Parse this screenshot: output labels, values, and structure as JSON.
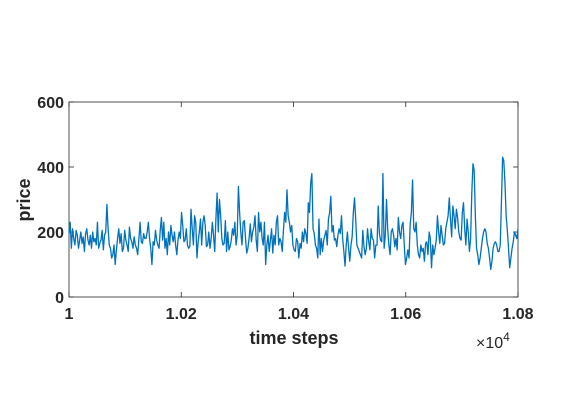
{
  "chart_data": {
    "type": "line",
    "title": "",
    "xlabel": "time steps",
    "ylabel": "price",
    "x_multiplier_label": "×10",
    "x_multiplier_exponent": "4",
    "xlim": [
      1.0,
      1.08
    ],
    "ylim": [
      0,
      600
    ],
    "x_ticks": [
      1.0,
      1.02,
      1.04,
      1.06,
      1.08
    ],
    "x_tick_labels": [
      "1",
      "1.02",
      "1.04",
      "1.06",
      "1.08"
    ],
    "y_ticks": [
      0,
      200,
      400,
      600
    ],
    "y_tick_labels": [
      "0",
      "200",
      "400",
      "600"
    ],
    "grid": false,
    "series": [
      {
        "color": "#0072BD",
        "x_start": 1.0,
        "x_end": 1.08,
        "values": [
          195,
          230,
          150,
          210,
          180,
          160,
          205,
          190,
          150,
          175,
          200,
          165,
          185,
          140,
          195,
          210,
          175,
          160,
          190,
          150,
          200,
          170,
          180,
          160,
          230,
          150,
          165,
          175,
          205,
          145,
          190,
          200,
          285,
          210,
          160,
          150,
          120,
          130,
          160,
          100,
          145,
          180,
          210,
          165,
          195,
          140,
          150,
          205,
          175,
          160,
          140,
          215,
          180,
          170,
          150,
          185,
          160,
          150,
          130,
          180,
          230,
          170,
          165,
          195,
          180,
          180,
          200,
          230,
          180,
          150,
          100,
          170,
          160,
          205,
          175,
          160,
          150,
          205,
          245,
          175,
          230,
          150,
          180,
          130,
          200,
          160,
          220,
          190,
          170,
          200,
          160,
          130,
          175,
          200,
          180,
          260,
          220,
          170,
          175,
          210,
          160,
          150,
          155,
          270,
          210,
          160,
          250,
          230,
          120,
          170,
          200,
          240,
          160,
          230,
          250,
          220,
          155,
          160,
          200,
          150,
          180,
          230,
          190,
          140,
          240,
          320,
          200,
          300,
          250,
          180,
          160,
          165,
          235,
          140,
          200,
          145,
          155,
          175,
          210,
          190,
          230,
          160,
          190,
          340,
          260,
          200,
          160,
          230,
          235,
          180,
          135,
          150,
          180,
          225,
          170,
          200,
          215,
          250,
          175,
          140,
          260,
          200,
          230,
          180,
          160,
          230,
          100,
          160,
          190,
          140,
          175,
          210,
          135,
          190,
          160,
          230,
          250,
          160,
          180,
          170,
          140,
          205,
          260,
          230,
          330,
          250,
          230,
          200,
          220,
          160,
          145,
          140,
          180,
          170,
          120,
          165,
          150,
          200,
          170,
          210,
          195,
          165,
          290,
          260,
          350,
          380,
          210,
          195,
          160,
          150,
          120,
          240,
          130,
          180,
          140,
          175,
          190,
          205,
          160,
          240,
          260,
          310,
          200,
          220,
          175,
          180,
          155,
          190,
          210,
          195,
          250,
          180,
          140,
          95,
          160,
          200,
          150,
          110,
          160,
          185,
          260,
          305,
          240,
          160,
          150,
          140,
          130,
          120,
          205,
          155,
          130,
          150,
          210,
          170,
          145,
          210,
          180,
          175,
          120,
          160,
          160,
          280,
          195,
          175,
          170,
          380,
          150,
          190,
          300,
          210,
          160,
          130,
          200,
          210,
          190,
          155,
          180,
          145,
          245,
          200,
          180,
          220,
          230,
          160,
          100,
          120,
          145,
          120,
          225,
          260,
          360,
          210,
          200,
          230,
          160,
          130,
          120,
          160,
          140,
          150,
          110,
          165,
          170,
          130,
          200,
          180,
          90,
          160,
          130,
          150,
          175,
          250,
          200,
          165,
          220,
          190,
          160,
          165,
          210,
          230,
          250,
          305,
          240,
          185,
          280,
          250,
          210,
          270,
          245,
          200,
          180,
          175,
          260,
          290,
          210,
          160,
          240,
          200,
          140,
          180,
          320,
          410,
          390,
          250,
          150,
          130,
          100,
          120,
          150,
          180,
          200,
          210,
          200,
          165,
          150,
          120,
          85,
          110,
          150,
          165,
          170,
          160,
          140,
          140,
          160,
          290,
          430,
          420,
          350,
          250,
          205,
          150,
          90,
          120,
          150,
          170,
          200,
          190,
          180,
          210
        ]
      }
    ]
  }
}
